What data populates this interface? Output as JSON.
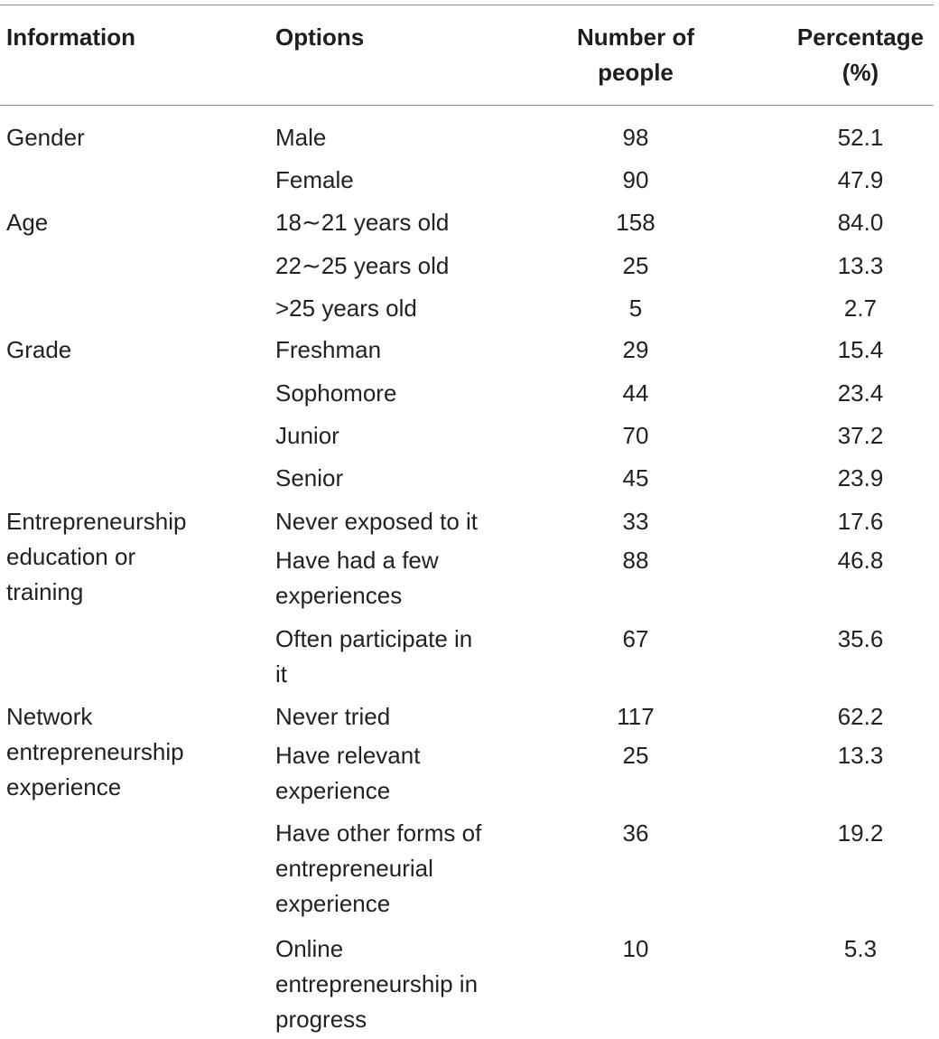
{
  "headers": {
    "information": "Information",
    "options": "Options",
    "number_line1": "Number of",
    "number_line2": "people",
    "percentage_line1": "Percentage",
    "percentage_line2": "(%)"
  },
  "groups": {
    "gender": "Gender",
    "age": "Age",
    "grade": "Grade",
    "edu_line1": "Entrepreneurship",
    "edu_line2": "education or",
    "edu_line3": "training",
    "net_line1": "Network",
    "net_line2": "entrepreneurship",
    "net_line3": "experience"
  },
  "rows": [
    {
      "option": [
        "Male"
      ],
      "number": "98",
      "percentage": "52.1"
    },
    {
      "option": [
        "Female"
      ],
      "number": "90",
      "percentage": "47.9"
    },
    {
      "option": [
        "18∼21 years old"
      ],
      "number": "158",
      "percentage": "84.0"
    },
    {
      "option": [
        "22∼25 years old"
      ],
      "number": "25",
      "percentage": "13.3"
    },
    {
      "option": [
        ">25 years old"
      ],
      "number": "5",
      "percentage": "2.7"
    },
    {
      "option": [
        "Freshman"
      ],
      "number": "29",
      "percentage": "15.4"
    },
    {
      "option": [
        "Sophomore"
      ],
      "number": "44",
      "percentage": "23.4"
    },
    {
      "option": [
        "Junior"
      ],
      "number": "70",
      "percentage": "37.2"
    },
    {
      "option": [
        "Senior"
      ],
      "number": "45",
      "percentage": "23.9"
    },
    {
      "option": [
        "Never exposed to it"
      ],
      "number": "33",
      "percentage": "17.6"
    },
    {
      "option": [
        "Have had a few",
        "experiences"
      ],
      "number": "88",
      "percentage": "46.8"
    },
    {
      "option": [
        "Often participate in",
        "it"
      ],
      "number": "67",
      "percentage": "35.6"
    },
    {
      "option": [
        "Never tried"
      ],
      "number": "117",
      "percentage": "62.2"
    },
    {
      "option": [
        "Have relevant",
        "experience"
      ],
      "number": "25",
      "percentage": "13.3"
    },
    {
      "option": [
        "Have other forms of",
        "entrepreneurial",
        "experience"
      ],
      "number": "36",
      "percentage": "19.2"
    },
    {
      "option": [
        "Online",
        "entrepreneurship in",
        "progress"
      ],
      "number": "10",
      "percentage": "5.3"
    }
  ]
}
